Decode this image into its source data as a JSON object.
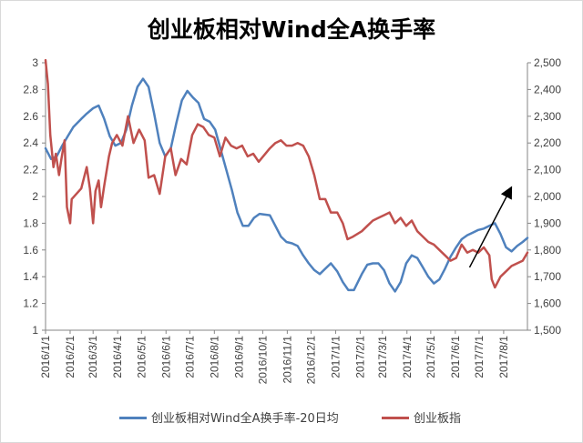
{
  "chart_data": {
    "type": "line",
    "title": "创业板相对Wind全A换手率",
    "x_ticks": [
      "2016/1/1",
      "2016/2/1",
      "2016/3/1",
      "2016/4/1",
      "2016/5/1",
      "2016/6/1",
      "2016/7/1",
      "2016/8/1",
      "2016/9/1",
      "2016/10/1",
      "2016/11/1",
      "2016/12/1",
      "2017/1/1",
      "2017/2/1",
      "2017/3/1",
      "2017/4/1",
      "2017/5/1",
      "2017/6/1",
      "2017/7/1",
      "2017/8/1"
    ],
    "y_left": {
      "ticks": [
        "1",
        "1.2",
        "1.4",
        "1.6",
        "1.8",
        "2",
        "2.2",
        "2.4",
        "2.6",
        "2.8",
        "3"
      ],
      "range": [
        1,
        3
      ]
    },
    "y_right": {
      "ticks": [
        "1,500",
        "1,600",
        "1,700",
        "1,800",
        "1,900",
        "2,000",
        "2,100",
        "2,200",
        "2,300",
        "2,400",
        "2,500"
      ],
      "range": [
        1500,
        2500
      ]
    },
    "series": [
      {
        "name": "创业板相对Wind全A换手率-20日均",
        "axis": "left",
        "color": "#4f81bd",
        "points": [
          [
            "2016-01-01",
            2.36
          ],
          [
            "2016-01-08",
            2.28
          ],
          [
            "2016-01-15",
            2.3
          ],
          [
            "2016-01-22",
            2.38
          ],
          [
            "2016-01-29",
            2.45
          ],
          [
            "2016-02-05",
            2.52
          ],
          [
            "2016-02-15",
            2.58
          ],
          [
            "2016-02-22",
            2.62
          ],
          [
            "2016-03-01",
            2.66
          ],
          [
            "2016-03-08",
            2.68
          ],
          [
            "2016-03-15",
            2.58
          ],
          [
            "2016-03-22",
            2.45
          ],
          [
            "2016-03-29",
            2.38
          ],
          [
            "2016-04-05",
            2.4
          ],
          [
            "2016-04-12",
            2.5
          ],
          [
            "2016-04-19",
            2.68
          ],
          [
            "2016-04-26",
            2.82
          ],
          [
            "2016-05-03",
            2.88
          ],
          [
            "2016-05-10",
            2.82
          ],
          [
            "2016-05-17",
            2.62
          ],
          [
            "2016-05-24",
            2.4
          ],
          [
            "2016-05-31",
            2.3
          ],
          [
            "2016-06-07",
            2.36
          ],
          [
            "2016-06-14",
            2.55
          ],
          [
            "2016-06-21",
            2.72
          ],
          [
            "2016-06-28",
            2.79
          ],
          [
            "2016-07-05",
            2.74
          ],
          [
            "2016-07-12",
            2.7
          ],
          [
            "2016-07-19",
            2.58
          ],
          [
            "2016-07-26",
            2.56
          ],
          [
            "2016-08-02",
            2.5
          ],
          [
            "2016-08-09",
            2.35
          ],
          [
            "2016-08-16",
            2.2
          ],
          [
            "2016-08-23",
            2.05
          ],
          [
            "2016-08-30",
            1.88
          ],
          [
            "2016-09-06",
            1.78
          ],
          [
            "2016-09-13",
            1.78
          ],
          [
            "2016-09-20",
            1.84
          ],
          [
            "2016-09-27",
            1.87
          ],
          [
            "2016-10-10",
            1.86
          ],
          [
            "2016-10-17",
            1.78
          ],
          [
            "2016-10-24",
            1.7
          ],
          [
            "2016-10-31",
            1.66
          ],
          [
            "2016-11-07",
            1.65
          ],
          [
            "2016-11-14",
            1.63
          ],
          [
            "2016-11-21",
            1.56
          ],
          [
            "2016-11-28",
            1.5
          ],
          [
            "2016-12-05",
            1.45
          ],
          [
            "2016-12-12",
            1.42
          ],
          [
            "2016-12-19",
            1.46
          ],
          [
            "2016-12-26",
            1.5
          ],
          [
            "2017-01-03",
            1.44
          ],
          [
            "2017-01-10",
            1.36
          ],
          [
            "2017-01-17",
            1.3
          ],
          [
            "2017-01-24",
            1.3
          ],
          [
            "2017-02-03",
            1.42
          ],
          [
            "2017-02-10",
            1.49
          ],
          [
            "2017-02-17",
            1.5
          ],
          [
            "2017-02-24",
            1.5
          ],
          [
            "2017-03-03",
            1.45
          ],
          [
            "2017-03-10",
            1.35
          ],
          [
            "2017-03-17",
            1.29
          ],
          [
            "2017-03-24",
            1.36
          ],
          [
            "2017-03-31",
            1.5
          ],
          [
            "2017-04-07",
            1.56
          ],
          [
            "2017-04-14",
            1.54
          ],
          [
            "2017-04-21",
            1.47
          ],
          [
            "2017-04-28",
            1.4
          ],
          [
            "2017-05-05",
            1.35
          ],
          [
            "2017-05-12",
            1.38
          ],
          [
            "2017-05-19",
            1.46
          ],
          [
            "2017-05-26",
            1.55
          ],
          [
            "2017-06-02",
            1.62
          ],
          [
            "2017-06-09",
            1.68
          ],
          [
            "2017-06-16",
            1.71
          ],
          [
            "2017-06-23",
            1.73
          ],
          [
            "2017-06-30",
            1.75
          ],
          [
            "2017-07-07",
            1.76
          ],
          [
            "2017-07-14",
            1.78
          ],
          [
            "2017-07-21",
            1.8
          ],
          [
            "2017-07-28",
            1.72
          ],
          [
            "2017-08-04",
            1.62
          ],
          [
            "2017-08-11",
            1.59
          ],
          [
            "2017-08-18",
            1.63
          ],
          [
            "2017-08-25",
            1.66
          ],
          [
            "2017-08-31",
            1.69
          ]
        ]
      },
      {
        "name": "创业板指",
        "axis": "right",
        "color": "#c0504d",
        "points": [
          [
            "2016-01-01",
            2510
          ],
          [
            "2016-01-04",
            2420
          ],
          [
            "2016-01-07",
            2230
          ],
          [
            "2016-01-11",
            2110
          ],
          [
            "2016-01-14",
            2160
          ],
          [
            "2016-01-18",
            2080
          ],
          [
            "2016-01-21",
            2140
          ],
          [
            "2016-01-25",
            2210
          ],
          [
            "2016-01-28",
            1960
          ],
          [
            "2016-02-01",
            1900
          ],
          [
            "2016-02-03",
            1990
          ],
          [
            "2016-02-15",
            2030
          ],
          [
            "2016-02-22",
            2110
          ],
          [
            "2016-02-26",
            2030
          ],
          [
            "2016-03-01",
            1900
          ],
          [
            "2016-03-04",
            2020
          ],
          [
            "2016-03-08",
            2060
          ],
          [
            "2016-03-11",
            1960
          ],
          [
            "2016-03-15",
            2040
          ],
          [
            "2016-03-21",
            2150
          ],
          [
            "2016-03-25",
            2200
          ],
          [
            "2016-03-31",
            2230
          ],
          [
            "2016-04-07",
            2190
          ],
          [
            "2016-04-14",
            2300
          ],
          [
            "2016-04-21",
            2200
          ],
          [
            "2016-04-28",
            2250
          ],
          [
            "2016-05-05",
            2210
          ],
          [
            "2016-05-10",
            2070
          ],
          [
            "2016-05-17",
            2080
          ],
          [
            "2016-05-24",
            2010
          ],
          [
            "2016-05-31",
            2150
          ],
          [
            "2016-06-07",
            2180
          ],
          [
            "2016-06-13",
            2080
          ],
          [
            "2016-06-20",
            2140
          ],
          [
            "2016-06-27",
            2120
          ],
          [
            "2016-07-04",
            2230
          ],
          [
            "2016-07-11",
            2270
          ],
          [
            "2016-07-18",
            2260
          ],
          [
            "2016-07-25",
            2230
          ],
          [
            "2016-08-01",
            2220
          ],
          [
            "2016-08-08",
            2150
          ],
          [
            "2016-08-15",
            2220
          ],
          [
            "2016-08-22",
            2190
          ],
          [
            "2016-08-29",
            2180
          ],
          [
            "2016-09-05",
            2190
          ],
          [
            "2016-09-12",
            2150
          ],
          [
            "2016-09-19",
            2160
          ],
          [
            "2016-09-26",
            2130
          ],
          [
            "2016-10-10",
            2180
          ],
          [
            "2016-10-17",
            2200
          ],
          [
            "2016-10-24",
            2210
          ],
          [
            "2016-10-31",
            2190
          ],
          [
            "2016-11-07",
            2190
          ],
          [
            "2016-11-14",
            2200
          ],
          [
            "2016-11-21",
            2190
          ],
          [
            "2016-11-28",
            2150
          ],
          [
            "2016-12-05",
            2080
          ],
          [
            "2016-12-12",
            1990
          ],
          [
            "2016-12-19",
            1990
          ],
          [
            "2016-12-26",
            1940
          ],
          [
            "2017-01-03",
            1940
          ],
          [
            "2017-01-10",
            1900
          ],
          [
            "2017-01-16",
            1840
          ],
          [
            "2017-01-23",
            1850
          ],
          [
            "2017-02-03",
            1870
          ],
          [
            "2017-02-10",
            1890
          ],
          [
            "2017-02-17",
            1910
          ],
          [
            "2017-02-24",
            1920
          ],
          [
            "2017-03-03",
            1930
          ],
          [
            "2017-03-10",
            1940
          ],
          [
            "2017-03-17",
            1900
          ],
          [
            "2017-03-24",
            1920
          ],
          [
            "2017-03-31",
            1890
          ],
          [
            "2017-04-07",
            1910
          ],
          [
            "2017-04-14",
            1870
          ],
          [
            "2017-04-21",
            1850
          ],
          [
            "2017-04-28",
            1830
          ],
          [
            "2017-05-05",
            1820
          ],
          [
            "2017-05-12",
            1800
          ],
          [
            "2017-05-19",
            1780
          ],
          [
            "2017-05-26",
            1760
          ],
          [
            "2017-06-02",
            1770
          ],
          [
            "2017-06-09",
            1820
          ],
          [
            "2017-06-16",
            1790
          ],
          [
            "2017-06-23",
            1800
          ],
          [
            "2017-06-30",
            1790
          ],
          [
            "2017-07-07",
            1810
          ],
          [
            "2017-07-14",
            1780
          ],
          [
            "2017-07-17",
            1690
          ],
          [
            "2017-07-21",
            1660
          ],
          [
            "2017-07-28",
            1700
          ],
          [
            "2017-08-04",
            1720
          ],
          [
            "2017-08-11",
            1740
          ],
          [
            "2017-08-18",
            1750
          ],
          [
            "2017-08-25",
            1760
          ],
          [
            "2017-08-31",
            1790
          ]
        ]
      }
    ],
    "annotations": [
      {
        "type": "arrow",
        "from": [
          "2017-06-19",
          1.47
        ],
        "to": [
          "2017-08-10",
          2.06
        ]
      }
    ],
    "grid": false,
    "legend": "bottom"
  }
}
